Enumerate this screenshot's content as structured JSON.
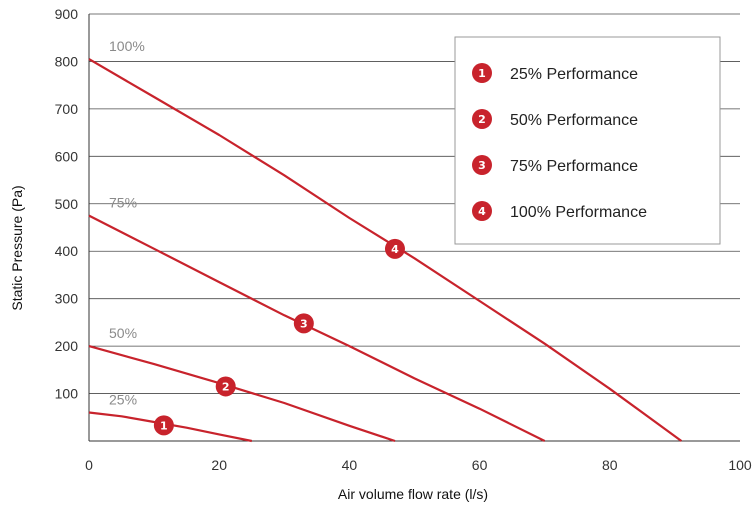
{
  "chart_data": {
    "type": "line",
    "title": "",
    "xlabel": "Air volume flow rate (l/s)",
    "ylabel": "Static Pressure (Pa)",
    "xlim": [
      0,
      100
    ],
    "ylim": [
      0,
      900
    ],
    "xticks": [
      0,
      20,
      40,
      60,
      80,
      100
    ],
    "yticks": [
      100,
      200,
      300,
      400,
      500,
      600,
      700,
      800,
      900
    ],
    "grid": "horizontal",
    "legend_position": "top-right",
    "line_color": "#c8232c",
    "series": [
      {
        "name": "25% Performance",
        "curve_label": "25%",
        "badge": "1",
        "x": [
          0,
          5,
          10,
          15,
          20,
          25
        ],
        "y": [
          60,
          52,
          40,
          28,
          14,
          0
        ],
        "badge_at": [
          11.5,
          33
        ]
      },
      {
        "name": "50% Performance",
        "curve_label": "50%",
        "badge": "2",
        "x": [
          0,
          10,
          20,
          30,
          40,
          47
        ],
        "y": [
          200,
          162,
          122,
          80,
          32,
          0
        ],
        "badge_at": [
          21,
          115
        ]
      },
      {
        "name": "75% Performance",
        "curve_label": "75%",
        "badge": "3",
        "x": [
          0,
          10,
          20,
          30,
          40,
          50,
          60,
          70
        ],
        "y": [
          475,
          405,
          335,
          265,
          200,
          132,
          68,
          0
        ],
        "badge_at": [
          33,
          248
        ]
      },
      {
        "name": "100% Performance",
        "curve_label": "100%",
        "badge": "4",
        "x": [
          0,
          10,
          20,
          30,
          40,
          50,
          60,
          70,
          80,
          91
        ],
        "y": [
          805,
          725,
          645,
          560,
          470,
          385,
          295,
          205,
          110,
          0
        ],
        "badge_at": [
          47,
          405
        ]
      }
    ]
  }
}
